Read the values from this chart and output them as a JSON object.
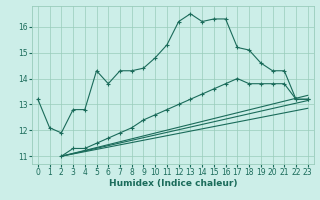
{
  "title": "",
  "xlabel": "Humidex (Indice chaleur)",
  "bg_color": "#cceee8",
  "line_color": "#1a6b5a",
  "xlim": [
    -0.5,
    23.5
  ],
  "ylim": [
    10.7,
    16.8
  ],
  "yticks": [
    11,
    12,
    13,
    14,
    15,
    16
  ],
  "xticks": [
    0,
    1,
    2,
    3,
    4,
    5,
    6,
    7,
    8,
    9,
    10,
    11,
    12,
    13,
    14,
    15,
    16,
    17,
    18,
    19,
    20,
    21,
    22,
    23
  ],
  "main_x": [
    0,
    1,
    2,
    3,
    4,
    5,
    6,
    7,
    8,
    9,
    10,
    11,
    12,
    13,
    14,
    15,
    16,
    17,
    18,
    19,
    20,
    21,
    22,
    23
  ],
  "main_y": [
    13.2,
    12.1,
    11.9,
    12.8,
    12.8,
    14.3,
    13.8,
    14.3,
    14.3,
    14.4,
    14.8,
    15.3,
    16.2,
    16.5,
    16.2,
    16.3,
    16.3,
    15.2,
    15.1,
    14.6,
    14.3,
    14.3,
    13.2,
    13.2
  ],
  "line2_x": [
    2,
    3,
    4,
    5,
    6,
    7,
    8,
    9,
    10,
    11,
    12,
    13,
    14,
    15,
    16,
    17,
    18,
    19,
    20,
    21,
    22,
    23
  ],
  "line2_y": [
    11.0,
    11.3,
    11.3,
    11.5,
    11.7,
    11.9,
    12.1,
    12.4,
    12.6,
    12.8,
    13.0,
    13.2,
    13.4,
    13.6,
    13.8,
    14.0,
    13.8,
    13.8,
    13.8,
    13.8,
    13.2,
    13.2
  ],
  "line3_x": [
    2,
    23
  ],
  "line3_y": [
    11.0,
    13.15
  ],
  "line4_x": [
    2,
    23
  ],
  "line4_y": [
    11.0,
    12.85
  ],
  "line5_x": [
    2,
    23
  ],
  "line5_y": [
    11.0,
    13.35
  ],
  "grid_color": "#99ccbb",
  "tick_fontsize": 5.5,
  "xlabel_fontsize": 6.5
}
